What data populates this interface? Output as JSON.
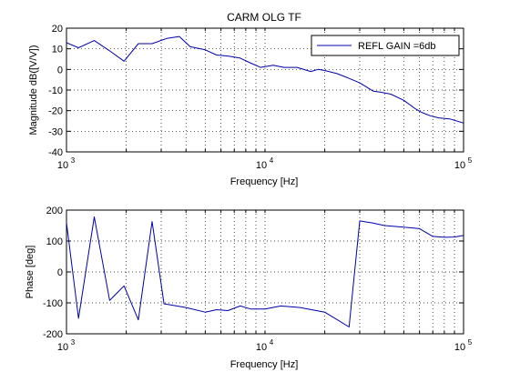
{
  "chart_data": [
    {
      "type": "line",
      "title": "CARM OLG TF",
      "xlabel": "Frequency [Hz]",
      "ylabel": "Magnitude dB([V/V])",
      "xscale": "log",
      "xlim": [
        1000,
        100000
      ],
      "ylim": [
        -40,
        20
      ],
      "xticks": [
        {
          "base": "10",
          "exp": "3",
          "value": 1000
        },
        {
          "base": "10",
          "exp": "4",
          "value": 10000
        },
        {
          "base": "10",
          "exp": "5",
          "value": 100000
        }
      ],
      "yticks": [
        20,
        10,
        0,
        -10,
        -20,
        -30,
        -40
      ],
      "grid": "dotted",
      "legend": {
        "position": "top-right",
        "entries": [
          "REFL GAIN =6db"
        ]
      },
      "series": [
        {
          "name": "REFL GAIN =6db",
          "color": "#0000aa",
          "x": [
            1000,
            1150,
            1380,
            1650,
            1950,
            2300,
            2700,
            3200,
            3700,
            4200,
            5000,
            5700,
            6500,
            7500,
            8500,
            9500,
            11000,
            12500,
            14500,
            17000,
            18500,
            20000,
            23000,
            26000,
            30000,
            35000,
            38000,
            43000,
            50000,
            57000,
            62000,
            68000,
            75000,
            85000,
            100000
          ],
          "y": [
            13,
            10.5,
            14,
            9,
            4,
            12.5,
            12.5,
            15,
            16,
            11,
            9.5,
            7,
            6.5,
            5.5,
            3,
            1,
            2,
            1,
            1,
            -1,
            0,
            -0.5,
            -2,
            -4,
            -6.5,
            -10.5,
            -11,
            -12,
            -15,
            -19,
            -21,
            -22.5,
            -23.5,
            -24,
            -26
          ]
        }
      ]
    },
    {
      "type": "line",
      "title": "",
      "xlabel": "Frequency [Hz]",
      "ylabel": "Phase [deg]",
      "xscale": "log",
      "xlim": [
        1000,
        100000
      ],
      "ylim": [
        -200,
        200
      ],
      "xticks": [
        {
          "base": "10",
          "exp": "3",
          "value": 1000
        },
        {
          "base": "10",
          "exp": "4",
          "value": 10000
        },
        {
          "base": "10",
          "exp": "5",
          "value": 100000
        }
      ],
      "yticks": [
        200,
        100,
        0,
        -100,
        -200
      ],
      "grid": "dotted",
      "series": [
        {
          "color": "#0000aa",
          "x": [
            1000,
            1150,
            1380,
            1650,
            1950,
            2300,
            2700,
            3100,
            4000,
            5000,
            5700,
            6500,
            7500,
            8500,
            10000,
            12000,
            15000,
            20000,
            26500,
            30000,
            35000,
            40000,
            50000,
            60000,
            70000,
            80000,
            90000,
            100000
          ],
          "y": [
            160,
            -150,
            178,
            -92,
            -45,
            -155,
            163,
            -103,
            -115,
            -130,
            -122,
            -125,
            -110,
            -120,
            -120,
            -110,
            -115,
            -130,
            -178,
            165,
            158,
            150,
            145,
            140,
            115,
            112,
            113,
            118
          ]
        }
      ]
    }
  ]
}
